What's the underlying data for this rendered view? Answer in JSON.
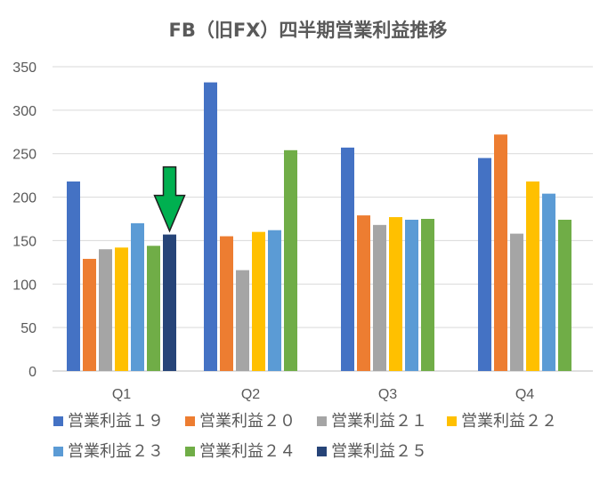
{
  "chart_data": {
    "type": "bar",
    "title": "FB（旧FX）四半期営業利益推移",
    "xlabel": "",
    "ylabel": "",
    "categories": [
      "Q1",
      "Q2",
      "Q3",
      "Q4"
    ],
    "ylim": [
      0,
      350
    ],
    "yticks": [
      0,
      50,
      100,
      150,
      200,
      250,
      300,
      350
    ],
    "grid": true,
    "legend_position": "bottom",
    "series": [
      {
        "name": "営業利益１９",
        "color": "#4472C4",
        "values": [
          218,
          332,
          257,
          245
        ]
      },
      {
        "name": "営業利益２０",
        "color": "#ED7D31",
        "values": [
          129,
          155,
          179,
          272
        ]
      },
      {
        "name": "営業利益２１",
        "color": "#A5A5A5",
        "values": [
          140,
          116,
          168,
          158
        ]
      },
      {
        "name": "営業利益２２",
        "color": "#FFC000",
        "values": [
          142,
          160,
          177,
          218
        ]
      },
      {
        "name": "営業利益２３",
        "color": "#5B9BD5",
        "values": [
          170,
          162,
          174,
          204
        ]
      },
      {
        "name": "営業利益２４",
        "color": "#70AD47",
        "values": [
          144,
          254,
          175,
          174
        ]
      },
      {
        "name": "営業利益２５",
        "color": "#264478",
        "values": [
          157,
          null,
          null,
          null
        ]
      }
    ],
    "annotation": {
      "type": "arrow",
      "color": "#00B050",
      "points_to": {
        "category": "Q1",
        "series": "営業利益２５"
      }
    }
  }
}
